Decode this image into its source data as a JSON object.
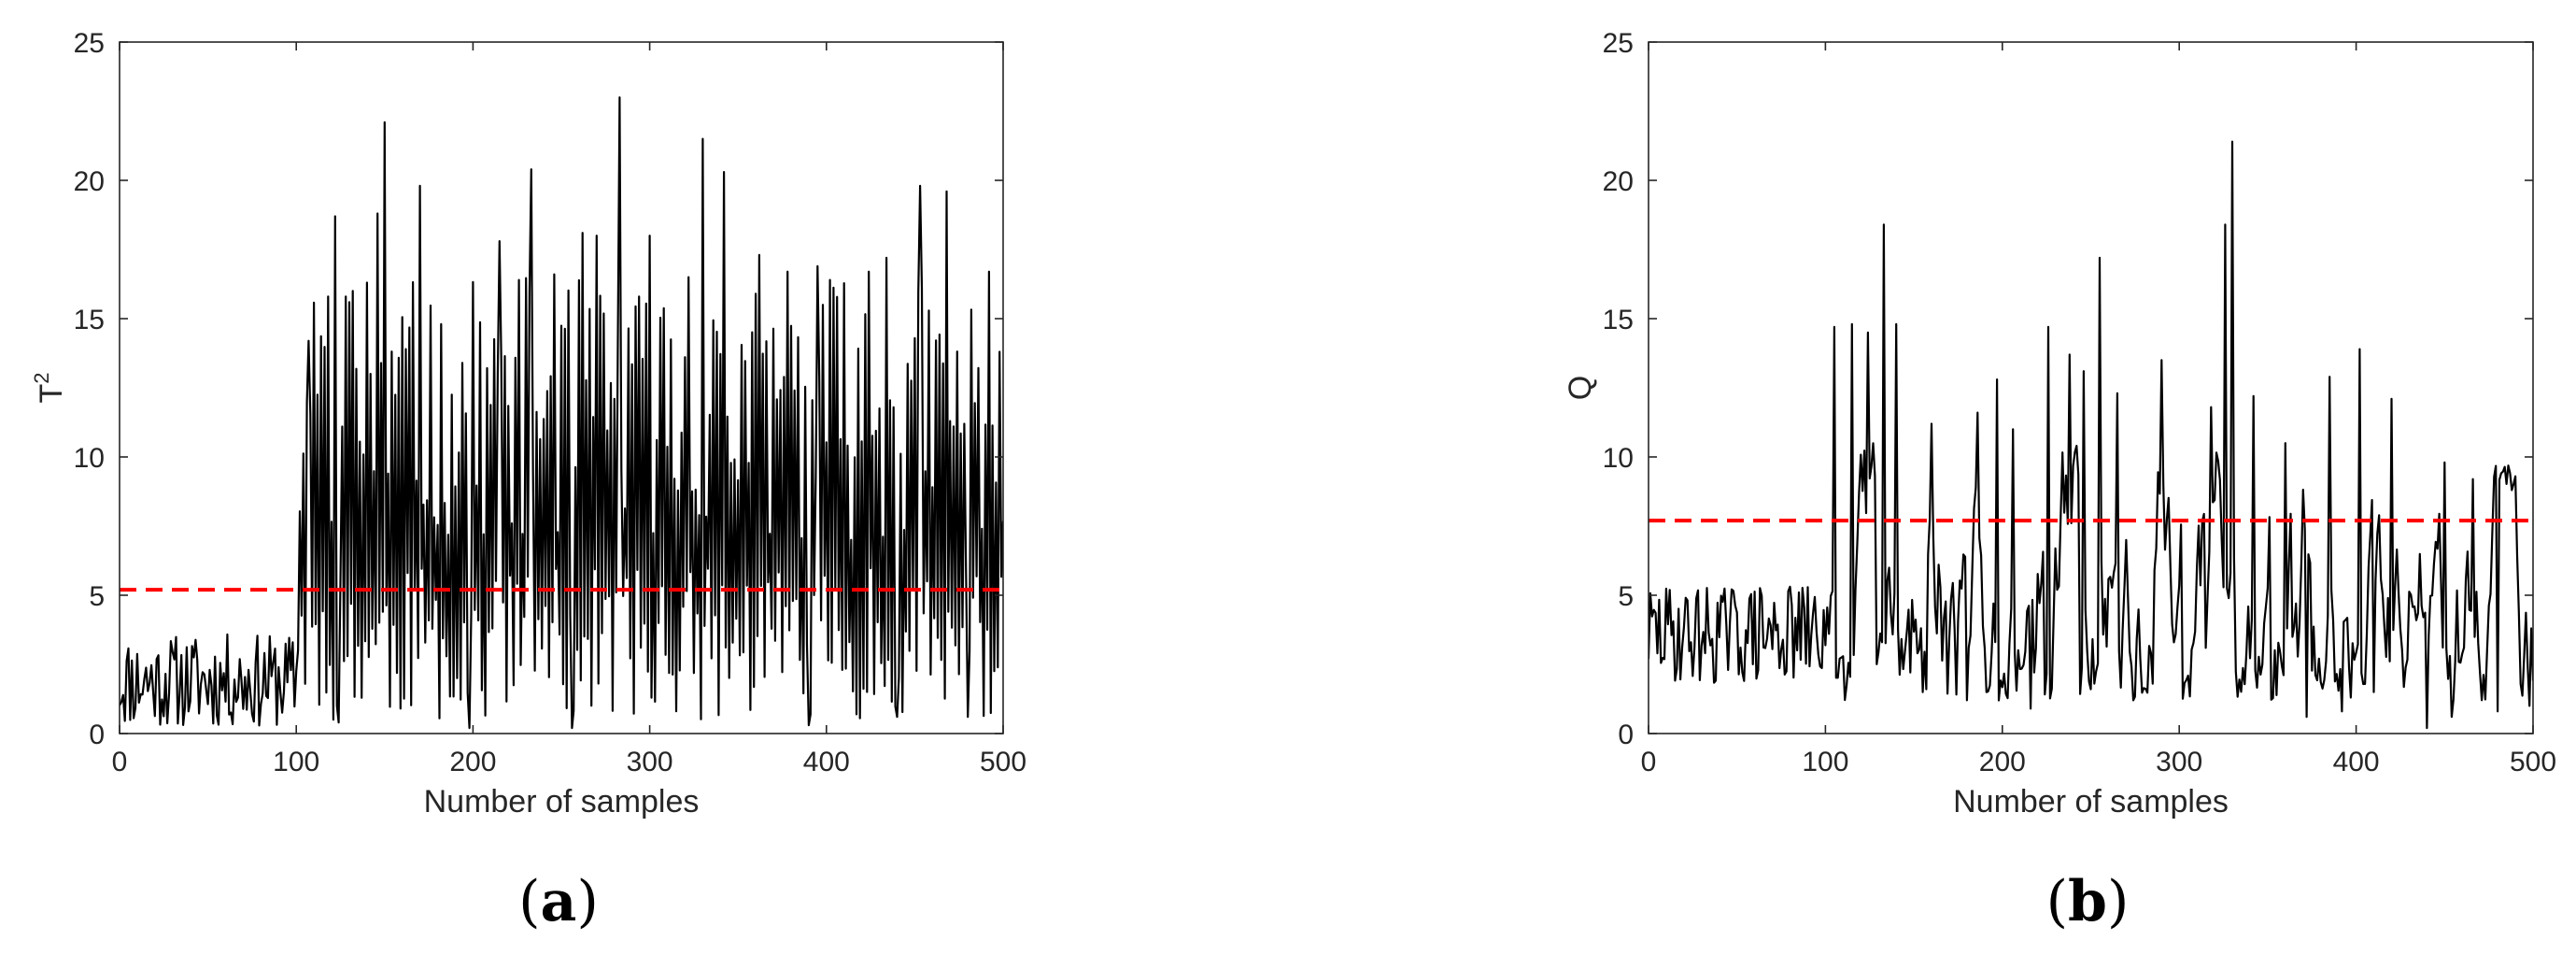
{
  "chart_data": [
    {
      "type": "line",
      "panel_label_open": "(",
      "panel_label_letter": "a",
      "panel_label_close": ")",
      "xlabel": "Number of samples",
      "ylabel": "T",
      "ylabel_superscript": "2",
      "xlim": [
        0,
        500
      ],
      "ylim": [
        0,
        25
      ],
      "xticks": [
        0,
        100,
        200,
        300,
        400,
        500
      ],
      "yticks": [
        0,
        5,
        10,
        15,
        20,
        25
      ],
      "grid": false,
      "series": [
        {
          "color": "#000000",
          "style": "solid",
          "generator": {
            "seed": 11,
            "before_lo": 0.2,
            "before_hi": 3.6,
            "change_at": 100,
            "after_lo": 0.5,
            "after_hi": 16.5,
            "oscillating": true,
            "peaks": [
              [
                107,
                14.2
              ],
              [
                118,
                15.8
              ],
              [
                122,
                18.7
              ],
              [
                132,
                16.0
              ],
              [
                140,
                16.3
              ],
              [
                146,
                18.8
              ],
              [
                150,
                22.1
              ],
              [
                170,
                19.8
              ],
              [
                182,
                14.8
              ],
              [
                198,
                18.1
              ],
              [
                215,
                17.8
              ],
              [
                226,
                16.4
              ],
              [
                233,
                20.4
              ],
              [
                246,
                16.6
              ],
              [
                256,
                16.7
              ],
              [
                262,
                18.1
              ],
              [
                270,
                18.0
              ],
              [
                283,
                23.0
              ],
              [
                300,
                18.0
              ],
              [
                322,
                16.5
              ],
              [
                330,
                21.5
              ],
              [
                342,
                20.3
              ],
              [
                362,
                17.3
              ],
              [
                378,
                16.7
              ],
              [
                395,
                16.9
              ],
              [
                402,
                16.4
              ],
              [
                424,
                16.7
              ],
              [
                434,
                17.2
              ],
              [
                453,
                19.8
              ],
              [
                468,
                19.6
              ],
              [
                478,
                11.2
              ],
              [
                492,
                16.7
              ],
              [
                498,
                13.8
              ]
            ],
            "troughs": [
              [
                124,
                0.4
              ],
              [
                198,
                0.2
              ],
              [
                256,
                0.2
              ],
              [
                390,
                0.3
              ],
              [
                440,
                0.6
              ],
              [
                480,
                0.6
              ]
            ]
          }
        },
        {
          "color": "#ff0000",
          "style": "dashed",
          "values_x": [
            0,
            500
          ],
          "values_y": [
            5.2,
            5.2
          ]
        }
      ]
    },
    {
      "type": "line",
      "panel_label_open": "(",
      "panel_label_letter": "b",
      "panel_label_close": ")",
      "xlabel": "Number of samples",
      "ylabel": "Q",
      "ylabel_superscript": "",
      "xlim": [
        0,
        500
      ],
      "ylim": [
        0,
        25
      ],
      "xticks": [
        0,
        100,
        200,
        300,
        400,
        500
      ],
      "yticks": [
        0,
        5,
        10,
        15,
        20,
        25
      ],
      "grid": false,
      "series": [
        {
          "color": "#000000",
          "style": "solid",
          "generator": {
            "seed": 29,
            "before_lo": 1.8,
            "before_hi": 5.4,
            "change_at": 105,
            "after_lo": 1.2,
            "after_hi": 10.5,
            "oscillating": false,
            "peaks": [
              [
                105,
                14.7
              ],
              [
                115,
                14.8
              ],
              [
                124,
                14.5
              ],
              [
                133,
                18.4
              ],
              [
                140,
                14.8
              ],
              [
                160,
                11.2
              ],
              [
                186,
                11.6
              ],
              [
                197,
                12.8
              ],
              [
                206,
                11.0
              ],
              [
                226,
                14.7
              ],
              [
                238,
                13.7
              ],
              [
                246,
                13.1
              ],
              [
                255,
                17.2
              ],
              [
                265,
                12.3
              ],
              [
                290,
                13.5
              ],
              [
                318,
                11.8
              ],
              [
                326,
                18.4
              ],
              [
                330,
                21.4
              ],
              [
                342,
                12.2
              ],
              [
                360,
                10.5
              ],
              [
                385,
                12.9
              ],
              [
                402,
                13.9
              ],
              [
                420,
                12.1
              ],
              [
                450,
                9.8
              ],
              [
                466,
                9.2
              ],
              [
                490,
                9.3
              ]
            ],
            "troughs": [
              [
                157,
                1.6
              ],
              [
                198,
                1.2
              ],
              [
                216,
                0.9
              ],
              [
                250,
                1.6
              ],
              [
                285,
                1.8
              ],
              [
                372,
                0.6
              ],
              [
                392,
                0.8
              ],
              [
                410,
                1.5
              ],
              [
                440,
                0.2
              ],
              [
                454,
                0.6
              ],
              [
                480,
                0.8
              ],
              [
                498,
                1.0
              ]
            ]
          }
        },
        {
          "color": "#ff0000",
          "style": "dashed",
          "values_x": [
            0,
            500
          ],
          "values_y": [
            7.7,
            7.7
          ]
        }
      ]
    }
  ]
}
